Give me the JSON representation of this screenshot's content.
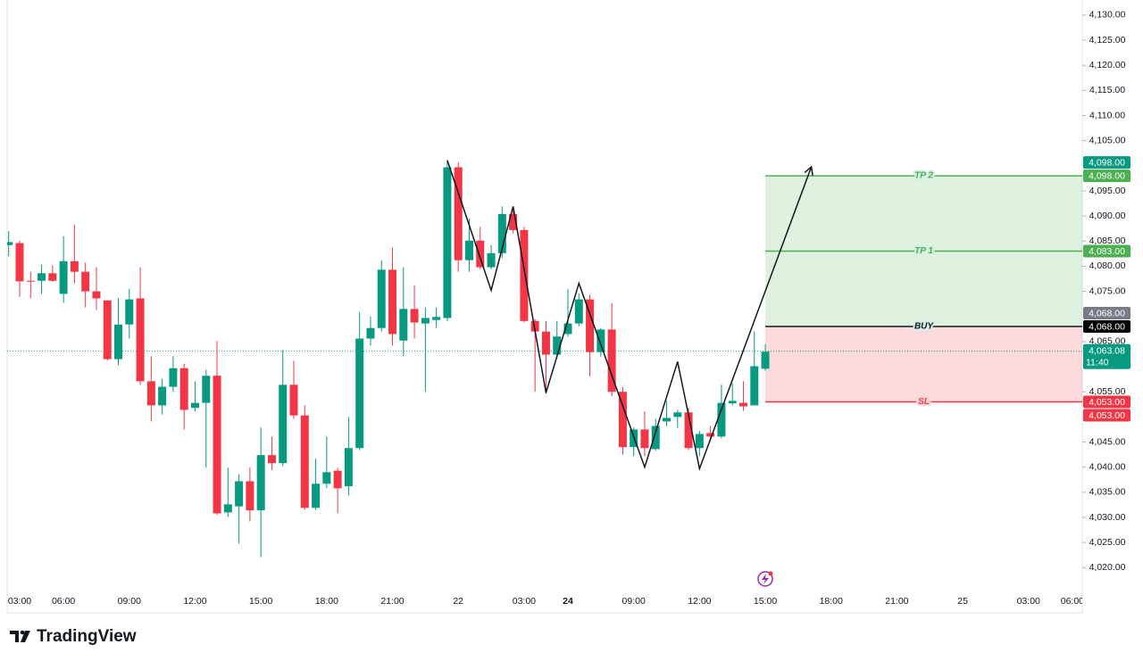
{
  "chart_data": {
    "type": "candlestick",
    "brand": "TradingView",
    "ylim": [
      4011,
      4133
    ],
    "yticks": [
      {
        "value": 4020,
        "label": "4,020.00"
      },
      {
        "value": 4025,
        "label": "4,025.00"
      },
      {
        "value": 4030,
        "label": "4,030.00"
      },
      {
        "value": 4035,
        "label": "4,035.00"
      },
      {
        "value": 4040,
        "label": "4,040.00"
      },
      {
        "value": 4045,
        "label": "4,045.00"
      },
      {
        "value": 4055,
        "label": "4,055.00"
      },
      {
        "value": 4065,
        "label": "4,065.00"
      },
      {
        "value": 4075,
        "label": "4,075.00"
      },
      {
        "value": 4080,
        "label": "4,080.00"
      },
      {
        "value": 4085,
        "label": "4,085.00"
      },
      {
        "value": 4090,
        "label": "4,090.00"
      },
      {
        "value": 4095,
        "label": "4,095.00"
      },
      {
        "value": 4105,
        "label": "4,105.00"
      },
      {
        "value": 4110,
        "label": "4,110.00"
      },
      {
        "value": 4115,
        "label": "4,115.00"
      },
      {
        "value": 4120,
        "label": "4,120.00"
      },
      {
        "value": 4125,
        "label": "4,125.00"
      },
      {
        "value": 4130,
        "label": "4,130.00"
      }
    ],
    "categories": [
      null,
      "03:00",
      null,
      null,
      null,
      "06:00",
      null,
      null,
      null,
      null,
      null,
      "09:00",
      null,
      null,
      null,
      null,
      null,
      "12:00",
      null,
      null,
      null,
      null,
      null,
      "15:00",
      null,
      null,
      null,
      null,
      null,
      "18:00",
      null,
      null,
      null,
      null,
      null,
      "21:00",
      null,
      null,
      null,
      null,
      null,
      "22",
      null,
      null,
      null,
      null,
      null,
      "03:00",
      null,
      null,
      null,
      "24",
      null,
      null,
      null,
      null,
      null,
      "09:00",
      null,
      null,
      null,
      null,
      null,
      "12:00",
      null,
      null,
      null,
      null,
      null,
      "15:00",
      null,
      null,
      null,
      null,
      null,
      "18:00",
      null,
      null,
      null,
      null,
      null,
      "21:00",
      null,
      null,
      null,
      null,
      null,
      "25",
      null,
      null,
      null,
      null,
      null,
      "03:00",
      null,
      null,
      null,
      "06:00"
    ],
    "up_color": "#089981",
    "down_color": "#f23645",
    "candles": [
      [
        4084.2,
        4087,
        4082,
        4084.8
      ],
      [
        4084.6,
        4085.1,
        4073.9,
        4077.0
      ],
      [
        4077.1,
        4078.9,
        4073.6,
        4077.0
      ],
      [
        4077.1,
        4080.3,
        4074.5,
        4078.6
      ],
      [
        4078.6,
        4080.2,
        4076.9,
        4077.1
      ],
      [
        4074.5,
        4086.0,
        4072.7,
        4081.0
      ],
      [
        4081.0,
        4088.3,
        4076.6,
        4078.9
      ],
      [
        4078.9,
        4080.7,
        4071.8,
        4075.0
      ],
      [
        4075.0,
        4079.8,
        4071.3,
        4073.6
      ],
      [
        4073.2,
        4073.2,
        4061.2,
        4061.5
      ],
      [
        4061.5,
        4073.6,
        4060.3,
        4068.4
      ],
      [
        4068.4,
        4075.5,
        4065.6,
        4073.4
      ],
      [
        4073.6,
        4079.8,
        4056.4,
        4057.1
      ],
      [
        4057.1,
        4062.1,
        4049.1,
        4052.3
      ],
      [
        4052.3,
        4057.6,
        4050.5,
        4056.0
      ],
      [
        4056.0,
        4062.1,
        4055.0,
        4059.7
      ],
      [
        4059.7,
        4060.6,
        4047.5,
        4051.4
      ],
      [
        4051.8,
        4057.1,
        4051.1,
        4052.8
      ],
      [
        4052.8,
        4059.4,
        4039.9,
        4058.2
      ],
      [
        4058.2,
        4065.1,
        4030.5,
        4030.8
      ],
      [
        4031.0,
        4039.9,
        4030.1,
        4032.6
      ],
      [
        4032.2,
        4038.6,
        4024.8,
        4037.2
      ],
      [
        4037.2,
        4039.9,
        4029.2,
        4031.4
      ],
      [
        4031.4,
        4047.9,
        4022.1,
        4042.4
      ],
      [
        4042.4,
        4046.1,
        4039.4,
        4040.8
      ],
      [
        4040.8,
        4063.3,
        4040.2,
        4056.4
      ],
      [
        4056.4,
        4061.2,
        4049.6,
        4050.3
      ],
      [
        4050.3,
        4052.3,
        4031.5,
        4031.9
      ],
      [
        4031.9,
        4041.7,
        4031.5,
        4036.7
      ],
      [
        4036.7,
        4046.1,
        4035.8,
        4039.0
      ],
      [
        4039.3,
        4039.9,
        4030.8,
        4035.8
      ],
      [
        4036.2,
        4050.0,
        4034.4,
        4043.8
      ],
      [
        4043.8,
        4070.9,
        4043.4,
        4065.6
      ],
      [
        4065.6,
        4070.0,
        4064.2,
        4067.7
      ],
      [
        4067.7,
        4081.2,
        4067.0,
        4079.3
      ],
      [
        4079.3,
        4083.7,
        4064.2,
        4066.5
      ],
      [
        4065.2,
        4079.8,
        4062.1,
        4071.5
      ],
      [
        4071.5,
        4076.2,
        4065.6,
        4068.8
      ],
      [
        4068.6,
        4071.8,
        4055.0,
        4069.7
      ],
      [
        4069.3,
        4071.8,
        4067.7,
        4069.9
      ],
      [
        4069.7,
        4101.1,
        4069.1,
        4099.7
      ],
      [
        4099.7,
        4100.7,
        4078.9,
        4081.2
      ],
      [
        4081.2,
        4089.5,
        4078.9,
        4085.1
      ],
      [
        4085.1,
        4087.8,
        4079.4,
        4079.8
      ],
      [
        4079.8,
        4084.2,
        4079.4,
        4082.6
      ],
      [
        4082.6,
        4091.9,
        4081.6,
        4090.4
      ],
      [
        4090.4,
        4091.9,
        4086.5,
        4087.2
      ],
      [
        4087.2,
        4087.8,
        4068.8,
        4069.1
      ],
      [
        4069.1,
        4069.5,
        4055.0,
        4067.0
      ],
      [
        4067.0,
        4069.1,
        4054.6,
        4062.4
      ],
      [
        4062.4,
        4069.1,
        4061.7,
        4066.0
      ],
      [
        4066.5,
        4075.5,
        4066.0,
        4068.6
      ],
      [
        4068.6,
        4074.6,
        4068.0,
        4073.4
      ],
      [
        4073.4,
        4074.3,
        4058.1,
        4062.9
      ],
      [
        4062.9,
        4067.7,
        4062.0,
        4067.4
      ],
      [
        4067.4,
        4072.7,
        4054.1,
        4055.0
      ],
      [
        4055.0,
        4055.9,
        4042.5,
        4044.0
      ],
      [
        4044.0,
        4047.9,
        4042.2,
        4047.5
      ],
      [
        4047.5,
        4051.1,
        4042.2,
        4043.8
      ],
      [
        4043.6,
        4049.6,
        4043.3,
        4048.2
      ],
      [
        4049.1,
        4053.2,
        4048.2,
        4049.8
      ],
      [
        4050.0,
        4051.4,
        4047.8,
        4050.9
      ],
      [
        4050.9,
        4051.8,
        4043.4,
        4043.8
      ],
      [
        4043.8,
        4047.2,
        4042.2,
        4046.6
      ],
      [
        4046.8,
        4048.2,
        4045.2,
        4046.1
      ],
      [
        4046.1,
        4056.4,
        4045.7,
        4052.8
      ],
      [
        4052.7,
        4056.7,
        4052.3,
        4053.2
      ],
      [
        4052.8,
        4057.1,
        4051.2,
        4052.1
      ],
      [
        4052.3,
        4067.0,
        4052.3,
        4060.1
      ],
      [
        4059.6,
        4064.5,
        4059.2,
        4063.0
      ],
      null,
      null,
      null,
      null,
      null,
      null,
      null,
      null,
      null,
      null,
      null,
      null,
      null,
      null,
      null,
      null,
      null,
      null,
      null,
      null,
      null,
      null,
      null,
      null,
      null,
      null,
      null,
      null
    ],
    "last_price": {
      "value": 4063.08,
      "label": "4,063.08",
      "countdown": "11:40",
      "color": "#089981"
    },
    "levels": [
      {
        "label": "TP 2",
        "value": 4098,
        "color": "#4caf50"
      },
      {
        "label": "TP 1",
        "value": 4083,
        "color": "#4caf50"
      },
      {
        "label": "BUY",
        "value": 4068,
        "color": "#131722"
      },
      {
        "label": "SL",
        "value": 4053,
        "color": "#f23645"
      }
    ],
    "price_tags": [
      {
        "value": 4098,
        "label": "4,098.00",
        "color": "#4caf50"
      },
      {
        "value": 4098,
        "label": "4,098.00",
        "color": "#089981"
      },
      {
        "value": 4083,
        "label": "4,083.00",
        "color": "#4caf50"
      },
      {
        "value": 4068,
        "label": "4,068.00",
        "color": "#000000"
      },
      {
        "value": 4068,
        "label": "4,068.00",
        "color": "#787b86"
      },
      {
        "value": 4053,
        "label": "4,053.00",
        "color": "#f23645"
      },
      {
        "value": 4053,
        "label": "4,053.00",
        "color": "#f23645"
      }
    ],
    "pattern": {
      "x": [
        40,
        44,
        46,
        49,
        52,
        58,
        61,
        63,
        73.2
      ],
      "y": [
        4101.1,
        4075.2,
        4091.9,
        4054.8,
        4076.6,
        4040.0,
        4061.0,
        4039.7,
        4099.8
      ]
    }
  }
}
